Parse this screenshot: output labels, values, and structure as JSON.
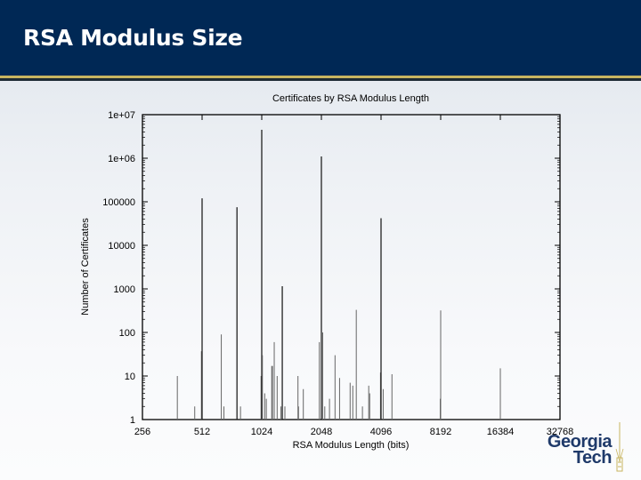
{
  "slide": {
    "title": "RSA Modulus Size",
    "colors": {
      "header": "#002855",
      "gold_stripe": "#c8b560",
      "logo": "#1f3a6a"
    }
  },
  "logo": {
    "line1": "Georgia",
    "line2": "Tech"
  },
  "chart_data": {
    "type": "bar",
    "title": "Certificates by RSA Modulus Length",
    "xlabel": "RSA Modulus Length (bits)",
    "ylabel": "Number of Certificates",
    "xscale": "log2",
    "yscale": "log10",
    "xlim": [
      256,
      32768
    ],
    "ylim": [
      1,
      10000000
    ],
    "x_ticks": [
      "256",
      "512",
      "1024",
      "2048",
      "4096",
      "8192",
      "16384",
      "32768"
    ],
    "y_ticks": [
      "1",
      "10",
      "100",
      "1000",
      "10000",
      "100000",
      "1e+06",
      "1e+07"
    ],
    "grid": false,
    "legend": null,
    "bars": [
      {
        "bits": 384,
        "count": 10
      },
      {
        "bits": 470,
        "count": 2
      },
      {
        "bits": 508,
        "count": 37
      },
      {
        "bits": 512,
        "count": 120000
      },
      {
        "bits": 640,
        "count": 90
      },
      {
        "bits": 660,
        "count": 2
      },
      {
        "bits": 768,
        "count": 75000
      },
      {
        "bits": 800,
        "count": 2
      },
      {
        "bits": 1016,
        "count": 10
      },
      {
        "bits": 1024,
        "count": 4500000
      },
      {
        "bits": 1032,
        "count": 30
      },
      {
        "bits": 1060,
        "count": 4
      },
      {
        "bits": 1080,
        "count": 3
      },
      {
        "bits": 1150,
        "count": 17
      },
      {
        "bits": 1160,
        "count": 17
      },
      {
        "bits": 1184,
        "count": 60
      },
      {
        "bits": 1225,
        "count": 10
      },
      {
        "bits": 1280,
        "count": 2
      },
      {
        "bits": 1300,
        "count": 1150
      },
      {
        "bits": 1340,
        "count": 2
      },
      {
        "bits": 1560,
        "count": 10
      },
      {
        "bits": 1570,
        "count": 2
      },
      {
        "bits": 1660,
        "count": 5
      },
      {
        "bits": 2000,
        "count": 60
      },
      {
        "bits": 2048,
        "count": 1100000
      },
      {
        "bits": 2080,
        "count": 100
      },
      {
        "bits": 2130,
        "count": 2
      },
      {
        "bits": 2250,
        "count": 3
      },
      {
        "bits": 2400,
        "count": 30
      },
      {
        "bits": 2530,
        "count": 9
      },
      {
        "bits": 2860,
        "count": 7
      },
      {
        "bits": 2950,
        "count": 6
      },
      {
        "bits": 3072,
        "count": 330
      },
      {
        "bits": 3300,
        "count": 2
      },
      {
        "bits": 3550,
        "count": 6
      },
      {
        "bits": 3590,
        "count": 4
      },
      {
        "bits": 4070,
        "count": 12
      },
      {
        "bits": 4096,
        "count": 42000
      },
      {
        "bits": 4200,
        "count": 5
      },
      {
        "bits": 4650,
        "count": 11
      },
      {
        "bits": 8150,
        "count": 3
      },
      {
        "bits": 8192,
        "count": 320
      },
      {
        "bits": 16384,
        "count": 15
      }
    ]
  }
}
